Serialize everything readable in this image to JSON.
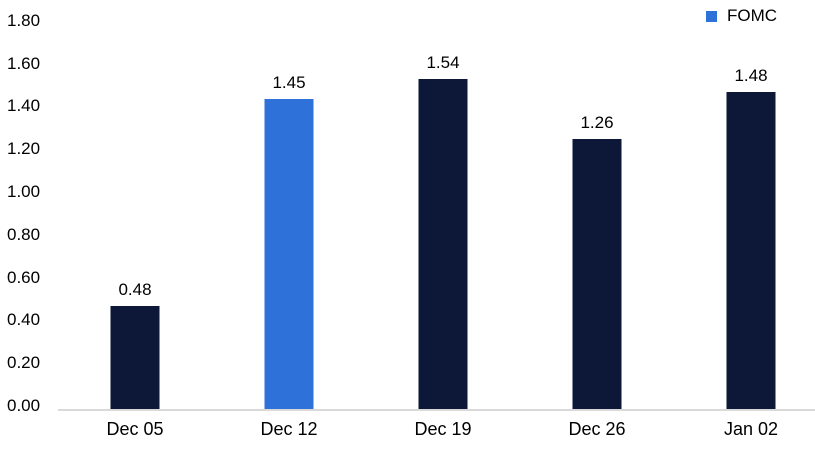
{
  "chart_data": {
    "type": "bar",
    "categories": [
      "Dec 05",
      "Dec 12",
      "Dec 19",
      "Dec 26",
      "Jan 02"
    ],
    "values": [
      0.48,
      1.45,
      1.54,
      1.26,
      1.48
    ],
    "data_labels": [
      "0.48",
      "1.45",
      "1.54",
      "1.26",
      "1.48"
    ],
    "highlight_index": 1,
    "title": "",
    "xlabel": "",
    "ylabel": "",
    "ylim": [
      0,
      1.8
    ],
    "ytick_step": 0.2,
    "ytick_labels": [
      "0.00",
      "0.20",
      "0.40",
      "0.60",
      "0.80",
      "1.00",
      "1.20",
      "1.40",
      "1.60",
      "1.80"
    ],
    "grid": false,
    "legend_position": "top-right",
    "colors": {
      "bar_default": "#0d1738",
      "bar_highlight": "#2e71d9",
      "axis_line": "#d9d9d9",
      "text": "#000000"
    }
  },
  "legend": {
    "label": "FOMC"
  }
}
